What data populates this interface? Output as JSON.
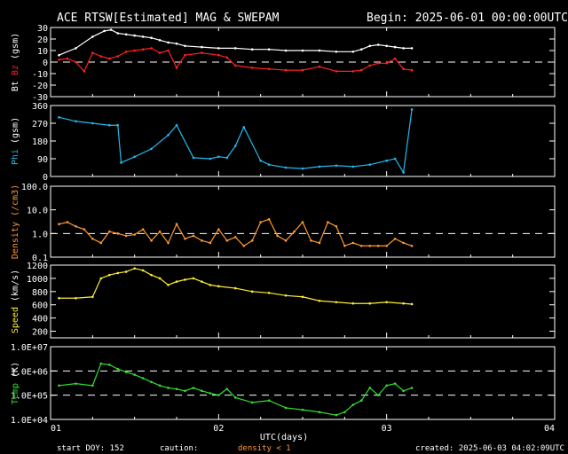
{
  "header": {
    "title": "ACE RTSW[Estimated] MAG & SWEPAM",
    "begin": "Begin: 2025-06-01 00:00:00UTC"
  },
  "footer": {
    "start_doy": "start DOY: 152",
    "caution": "caution:",
    "density_note": "density < 1",
    "created": "created: 2025-06-03 04:02:09UTC",
    "xlabel": "UTC(days)"
  },
  "colors": {
    "bt": "#ffffff",
    "bz": "#ff2020",
    "phi": "#22bbee",
    "density": "#ff9933",
    "speed": "#ffee33",
    "temp": "#33dd33",
    "caution": "#ff9933",
    "frame": "#ffffff"
  },
  "chart_data": {
    "type": "scatter",
    "x_axis": {
      "range": [
        1,
        4
      ],
      "ticks": [
        "01",
        "02",
        "03",
        "04"
      ]
    },
    "panels": [
      {
        "id": "mag",
        "ylabel": [
          "Bt",
          "Bz",
          "(gsm)"
        ],
        "ylabel_colors": [
          "#ffffff",
          "#ff2020",
          "#ffffff"
        ],
        "ylim": [
          -30,
          30
        ],
        "ticks": [
          "30",
          "20",
          "10",
          "0",
          "-10",
          "-20",
          "-30"
        ],
        "tick_values": [
          30,
          20,
          10,
          0,
          -10,
          -20,
          -30
        ],
        "dashed": [
          0
        ],
        "series": [
          {
            "name": "Bt",
            "color": "#ffffff",
            "x": [
              1.05,
              1.15,
              1.25,
              1.32,
              1.36,
              1.4,
              1.45,
              1.5,
              1.55,
              1.6,
              1.65,
              1.7,
              1.75,
              1.8,
              1.9,
              2.0,
              2.1,
              2.2,
              2.3,
              2.4,
              2.5,
              2.6,
              2.7,
              2.8,
              2.85,
              2.9,
              2.95,
              3.0,
              3.05,
              3.1,
              3.15
            ],
            "y": [
              6,
              12,
              22,
              27,
              28,
              25,
              24,
              23,
              22,
              21,
              19,
              17,
              16,
              14,
              13,
              12,
              12,
              11,
              11,
              10,
              10,
              10,
              9,
              9,
              11,
              14,
              15,
              14,
              13,
              12,
              12
            ]
          },
          {
            "name": "Bz",
            "color": "#ff2020",
            "x": [
              1.05,
              1.1,
              1.15,
              1.2,
              1.25,
              1.3,
              1.35,
              1.4,
              1.45,
              1.5,
              1.55,
              1.6,
              1.65,
              1.7,
              1.75,
              1.8,
              1.9,
              2.0,
              2.05,
              2.1,
              2.2,
              2.3,
              2.4,
              2.5,
              2.6,
              2.7,
              2.8,
              2.85,
              2.9,
              2.95,
              3.0,
              3.05,
              3.1,
              3.15
            ],
            "y": [
              2,
              3,
              0,
              -8,
              8,
              5,
              3,
              5,
              9,
              10,
              11,
              12,
              8,
              10,
              -5,
              6,
              8,
              6,
              4,
              -3,
              -5,
              -6,
              -7,
              -7,
              -4,
              -8,
              -8,
              -7,
              -3,
              -1,
              -1,
              3,
              -6,
              -7
            ]
          }
        ]
      },
      {
        "id": "phi",
        "ylabel": [
          "Phi",
          "(gsm)"
        ],
        "ylabel_colors": [
          "#22bbee",
          "#ffffff"
        ],
        "ylim": [
          0,
          360
        ],
        "ticks": [
          "360",
          "270",
          "180",
          "90",
          "0"
        ],
        "tick_values": [
          360,
          270,
          180,
          90,
          0
        ],
        "dashed": [],
        "series": [
          {
            "name": "Phi",
            "color": "#22bbee",
            "x": [
              1.05,
              1.15,
              1.25,
              1.35,
              1.4,
              1.42,
              1.5,
              1.6,
              1.7,
              1.75,
              1.85,
              1.95,
              2.0,
              2.05,
              2.1,
              2.15,
              2.25,
              2.3,
              2.4,
              2.5,
              2.6,
              2.7,
              2.8,
              2.9,
              3.0,
              3.05,
              3.1,
              3.15
            ],
            "y": [
              300,
              280,
              270,
              260,
              260,
              70,
              100,
              140,
              210,
              260,
              95,
              90,
              100,
              95,
              155,
              250,
              80,
              60,
              45,
              40,
              50,
              55,
              50,
              60,
              80,
              90,
              20,
              340
            ]
          }
        ]
      },
      {
        "id": "density",
        "ylabel": [
          "Density",
          "(/cm3)"
        ],
        "ylabel_colors": [
          "#ff9933",
          "#ff9933"
        ],
        "ylim": [
          0.1,
          100
        ],
        "scale": "log",
        "ticks": [
          "100.0",
          "10.0",
          "1.0",
          "0.1"
        ],
        "tick_values": [
          100,
          10,
          1,
          0.1
        ],
        "dashed": [
          1
        ],
        "series": [
          {
            "name": "Density",
            "color": "#ff9933",
            "x": [
              1.05,
              1.1,
              1.15,
              1.2,
              1.25,
              1.3,
              1.35,
              1.4,
              1.45,
              1.5,
              1.55,
              1.6,
              1.65,
              1.7,
              1.75,
              1.8,
              1.85,
              1.9,
              1.95,
              2.0,
              2.05,
              2.1,
              2.15,
              2.2,
              2.25,
              2.3,
              2.35,
              2.4,
              2.45,
              2.5,
              2.55,
              2.6,
              2.65,
              2.7,
              2.75,
              2.8,
              2.85,
              2.9,
              2.95,
              3.0,
              3.05,
              3.1,
              3.15
            ],
            "y": [
              2.5,
              3,
              2,
              1.5,
              0.6,
              0.4,
              1.2,
              1,
              0.8,
              0.9,
              1.5,
              0.5,
              1.2,
              0.4,
              2.5,
              0.6,
              0.8,
              0.5,
              0.4,
              1.5,
              0.5,
              0.7,
              0.3,
              0.5,
              3,
              4,
              0.8,
              0.5,
              1.2,
              3,
              0.5,
              0.4,
              3,
              2,
              0.3,
              0.4,
              0.3,
              0.3,
              0.3,
              0.3,
              0.6,
              0.4,
              0.3
            ]
          }
        ]
      },
      {
        "id": "speed",
        "ylabel": [
          "Speed",
          "(km/s)"
        ],
        "ylabel_colors": [
          "#ffee33",
          "#ffffff"
        ],
        "ylim": [
          100,
          1200
        ],
        "ticks": [
          "1200",
          "1000",
          "800",
          "600",
          "400",
          "200"
        ],
        "tick_values": [
          1200,
          1000,
          800,
          600,
          400,
          200
        ],
        "dashed": [],
        "series": [
          {
            "name": "Speed",
            "color": "#ffee33",
            "x": [
              1.05,
              1.15,
              1.25,
              1.3,
              1.35,
              1.4,
              1.45,
              1.5,
              1.55,
              1.6,
              1.65,
              1.7,
              1.75,
              1.8,
              1.85,
              1.9,
              1.95,
              2.0,
              2.1,
              2.2,
              2.3,
              2.4,
              2.5,
              2.6,
              2.7,
              2.8,
              2.9,
              3.0,
              3.1,
              3.15
            ],
            "y": [
              700,
              700,
              720,
              1000,
              1050,
              1080,
              1100,
              1150,
              1120,
              1050,
              1000,
              900,
              950,
              980,
              1000,
              950,
              900,
              880,
              850,
              800,
              780,
              740,
              720,
              660,
              640,
              620,
              620,
              640,
              620,
              610
            ]
          }
        ]
      },
      {
        "id": "temp",
        "ylabel": [
          "Temp",
          "(K)"
        ],
        "ylabel_colors": [
          "#33dd33",
          "#ffffff"
        ],
        "ylim": [
          10000,
          10000000
        ],
        "scale": "log",
        "ticks": [
          "1.0E+07",
          "1.0E+06",
          "1.0E+05",
          "1.0E+04"
        ],
        "tick_values": [
          10000000,
          1000000,
          100000,
          10000
        ],
        "dashed": [
          1000000,
          100000
        ],
        "series": [
          {
            "name": "Temp",
            "color": "#33dd33",
            "x": [
              1.05,
              1.15,
              1.25,
              1.3,
              1.35,
              1.4,
              1.45,
              1.5,
              1.55,
              1.6,
              1.65,
              1.7,
              1.75,
              1.8,
              1.85,
              1.9,
              1.95,
              2.0,
              2.05,
              2.1,
              2.2,
              2.3,
              2.4,
              2.5,
              2.6,
              2.7,
              2.75,
              2.8,
              2.85,
              2.9,
              2.95,
              3.0,
              3.05,
              3.1,
              3.15
            ],
            "y": [
              250000,
              300000,
              250000,
              2000000,
              1800000,
              1200000,
              900000,
              700000,
              500000,
              350000,
              250000,
              200000,
              180000,
              150000,
              200000,
              150000,
              120000,
              100000,
              180000,
              80000,
              50000,
              60000,
              30000,
              25000,
              20000,
              15000,
              20000,
              40000,
              60000,
              200000,
              100000,
              250000,
              300000,
              150000,
              200000
            ]
          }
        ]
      }
    ]
  }
}
